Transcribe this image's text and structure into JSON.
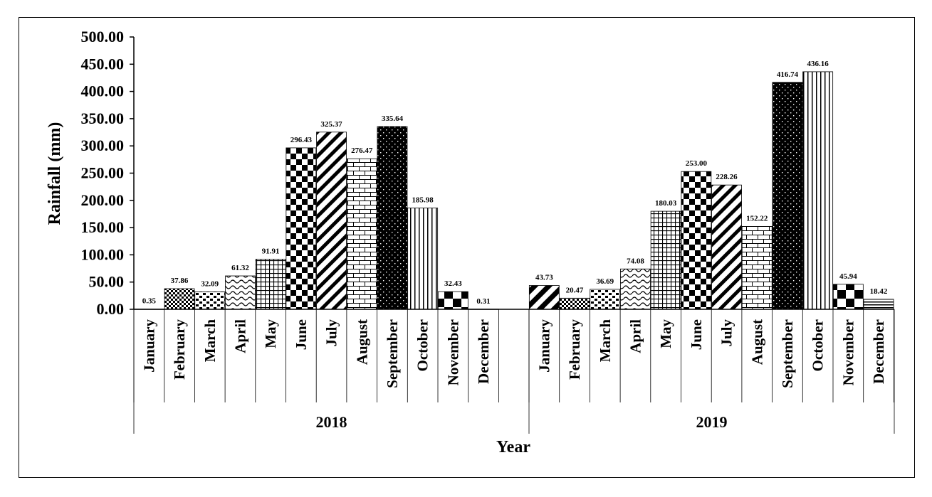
{
  "chart_data": {
    "type": "bar",
    "ylabel": "Rainfall (mm)",
    "xlabel": "Year",
    "ylim": [
      0,
      500
    ],
    "yticks": [
      "0.00",
      "50.00",
      "100.00",
      "150.00",
      "200.00",
      "250.00",
      "300.00",
      "350.00",
      "400.00",
      "450.00",
      "500.00"
    ],
    "grid": false,
    "legend": "none",
    "groups": [
      {
        "name": "2018",
        "categories": [
          "January",
          "February",
          "March",
          "April",
          "May",
          "June",
          "July",
          "August",
          "September",
          "October",
          "November",
          "December"
        ],
        "values": [
          0.35,
          37.86,
          32.09,
          61.32,
          91.91,
          296.43,
          325.37,
          276.47,
          335.64,
          185.98,
          32.43,
          0.31
        ],
        "labels": [
          "0.35",
          "37.86",
          "32.09",
          "61.32",
          "91.91",
          "296.43",
          "325.37",
          "276.47",
          "335.64",
          "185.98",
          "32.43",
          "0.31"
        ]
      },
      {
        "name": "2019",
        "categories": [
          "January",
          "February",
          "March",
          "April",
          "May",
          "June",
          "July",
          "August",
          "September",
          "October",
          "November",
          "December"
        ],
        "values": [
          43.73,
          20.47,
          36.69,
          74.08,
          180.03,
          253.0,
          228.26,
          152.22,
          416.74,
          436.16,
          45.94,
          18.42
        ],
        "labels": [
          "43.73",
          "20.47",
          "36.69",
          "74.08",
          "180.03",
          "253.00",
          "228.26",
          "152.22",
          "416.74",
          "436.16",
          "45.94",
          "18.42"
        ]
      }
    ],
    "bar_patterns": [
      "diagonal-bold",
      "small-checker",
      "zigzag-dots",
      "waves",
      "grid",
      "checker",
      "diagonal-stripes",
      "bricks",
      "dots-on-black",
      "vertical-lines",
      "large-checker",
      "horizontal-lines"
    ],
    "bar_colors": {
      "ink": "#000000",
      "paper": "#ffffff"
    }
  }
}
